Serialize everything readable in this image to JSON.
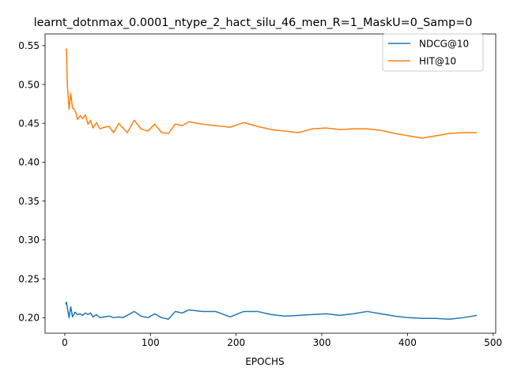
{
  "chart_data": {
    "type": "line",
    "title": "learnt_dotnmax_0.0001_ntype_2_hact_silu_46_men_R=1_MaskU=0_Samp=0",
    "xlabel": "EPOCHS",
    "ylabel": "",
    "xlim": [
      -23,
      503
    ],
    "ylim": [
      0.18,
      0.565
    ],
    "x_ticks": [
      0,
      100,
      200,
      300,
      400,
      500
    ],
    "y_ticks": [
      0.2,
      0.25,
      0.3,
      0.35,
      0.4,
      0.45,
      0.5,
      0.55
    ],
    "legend": "top-right",
    "grid": false,
    "series": [
      {
        "name": "NDCG@10",
        "color": "#1f77b4",
        "x": [
          1,
          2,
          3,
          5,
          7,
          9,
          12,
          15,
          18,
          21,
          24,
          27,
          30,
          33,
          37,
          41,
          46,
          52,
          57,
          63,
          68,
          73,
          81,
          89,
          97,
          105,
          113,
          121,
          129,
          137,
          145,
          160,
          176,
          193,
          209,
          225,
          241,
          257,
          273,
          289,
          305,
          321,
          337,
          353,
          369,
          385,
          401,
          417,
          433,
          449,
          465,
          481
        ],
        "values": [
          0.217,
          0.22,
          0.213,
          0.2,
          0.214,
          0.201,
          0.207,
          0.204,
          0.205,
          0.203,
          0.206,
          0.204,
          0.206,
          0.201,
          0.204,
          0.2,
          0.201,
          0.202,
          0.2,
          0.201,
          0.2,
          0.203,
          0.208,
          0.202,
          0.2,
          0.205,
          0.2,
          0.198,
          0.208,
          0.206,
          0.21,
          0.208,
          0.208,
          0.201,
          0.208,
          0.208,
          0.204,
          0.202,
          0.203,
          0.204,
          0.205,
          0.203,
          0.205,
          0.208,
          0.205,
          0.202,
          0.2,
          0.199,
          0.199,
          0.198,
          0.2,
          0.203
        ]
      },
      {
        "name": "HIT@10",
        "color": "#ff7f0e",
        "x": [
          1,
          2,
          3,
          5,
          7,
          9,
          12,
          15,
          18,
          21,
          24,
          27,
          30,
          33,
          37,
          41,
          46,
          52,
          57,
          63,
          68,
          73,
          81,
          89,
          97,
          105,
          113,
          121,
          129,
          137,
          145,
          160,
          176,
          193,
          209,
          225,
          241,
          257,
          273,
          289,
          305,
          321,
          337,
          353,
          369,
          385,
          401,
          417,
          433,
          449,
          465,
          481
        ],
        "values": [
          0.546,
          0.545,
          0.5,
          0.468,
          0.488,
          0.47,
          0.467,
          0.455,
          0.46,
          0.456,
          0.461,
          0.449,
          0.454,
          0.444,
          0.451,
          0.443,
          0.445,
          0.446,
          0.438,
          0.45,
          0.444,
          0.438,
          0.454,
          0.443,
          0.44,
          0.449,
          0.438,
          0.437,
          0.449,
          0.447,
          0.452,
          0.449,
          0.447,
          0.445,
          0.451,
          0.446,
          0.442,
          0.44,
          0.438,
          0.443,
          0.444,
          0.442,
          0.443,
          0.443,
          0.441,
          0.437,
          0.434,
          0.431,
          0.434,
          0.437,
          0.438,
          0.438
        ]
      }
    ]
  }
}
